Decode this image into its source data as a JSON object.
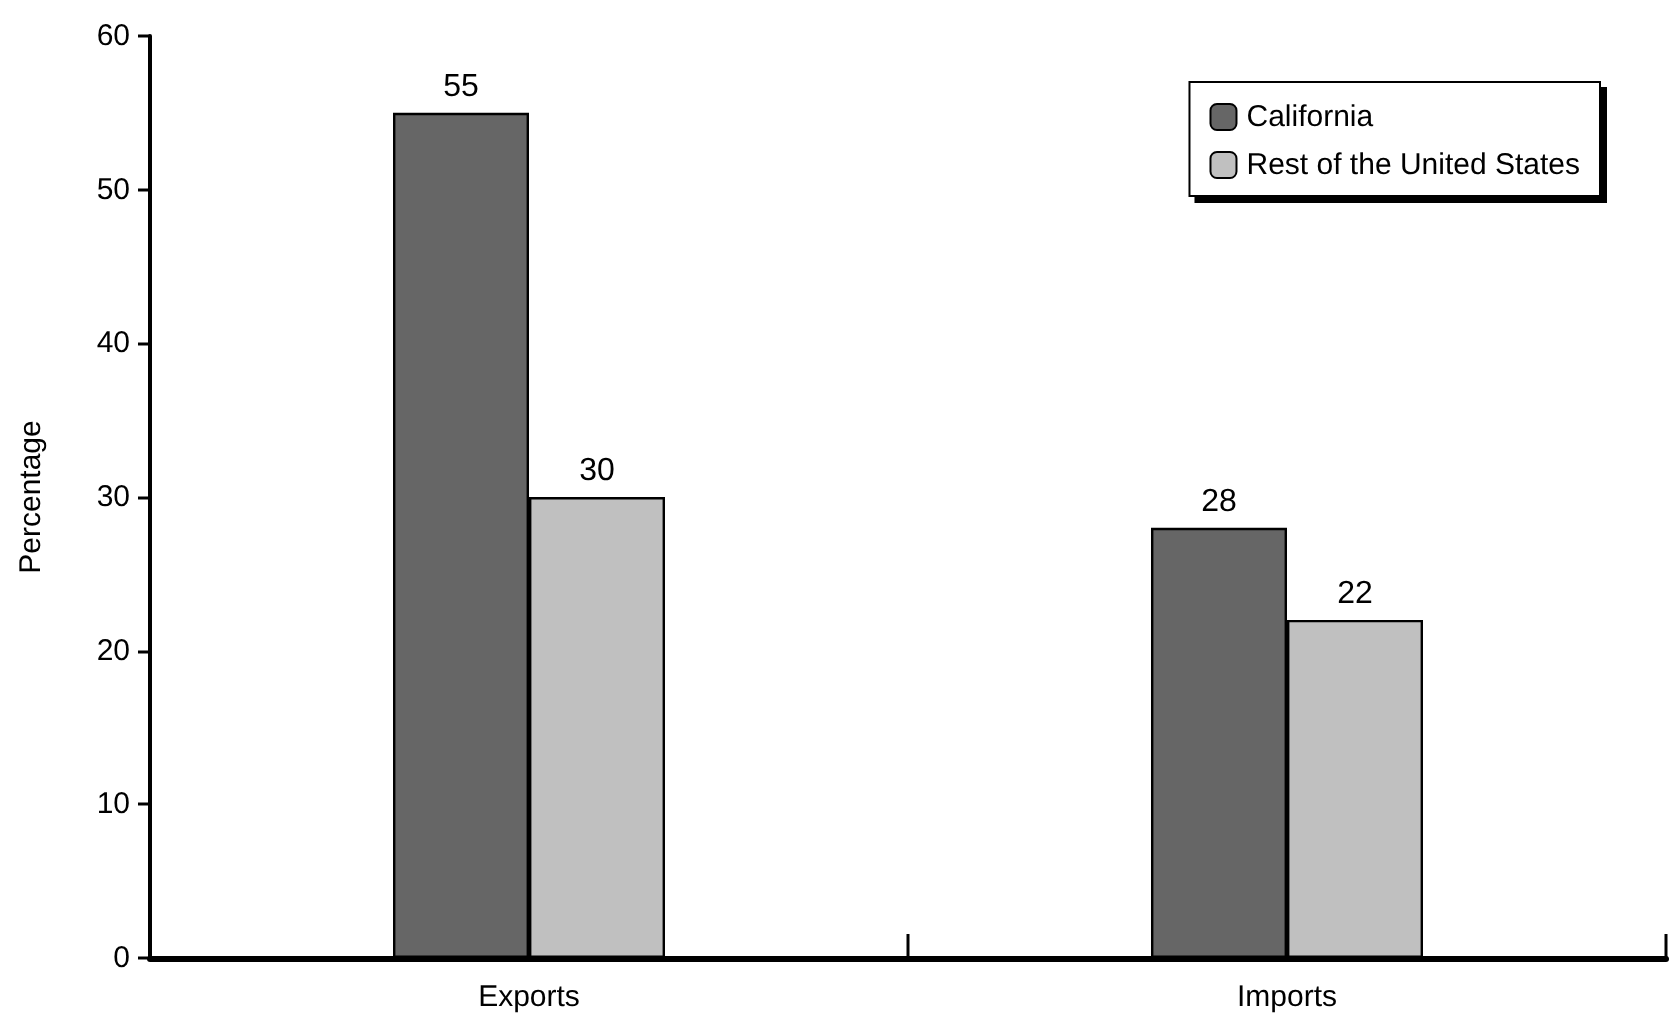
{
  "chart_data": {
    "type": "bar",
    "ylabel": "Percentage",
    "categories": [
      "Exports",
      "Imports"
    ],
    "series": [
      {
        "name": "California",
        "color": "#666666",
        "values": [
          55,
          28
        ]
      },
      {
        "name": "Rest of the United States",
        "color": "#c0c0c0",
        "values": [
          30,
          22
        ]
      }
    ],
    "ylim": [
      0,
      60
    ],
    "yticks": [
      0,
      10,
      20,
      30,
      40,
      50,
      60
    ],
    "data_labels": true,
    "legend": "top right",
    "grid": false
  }
}
